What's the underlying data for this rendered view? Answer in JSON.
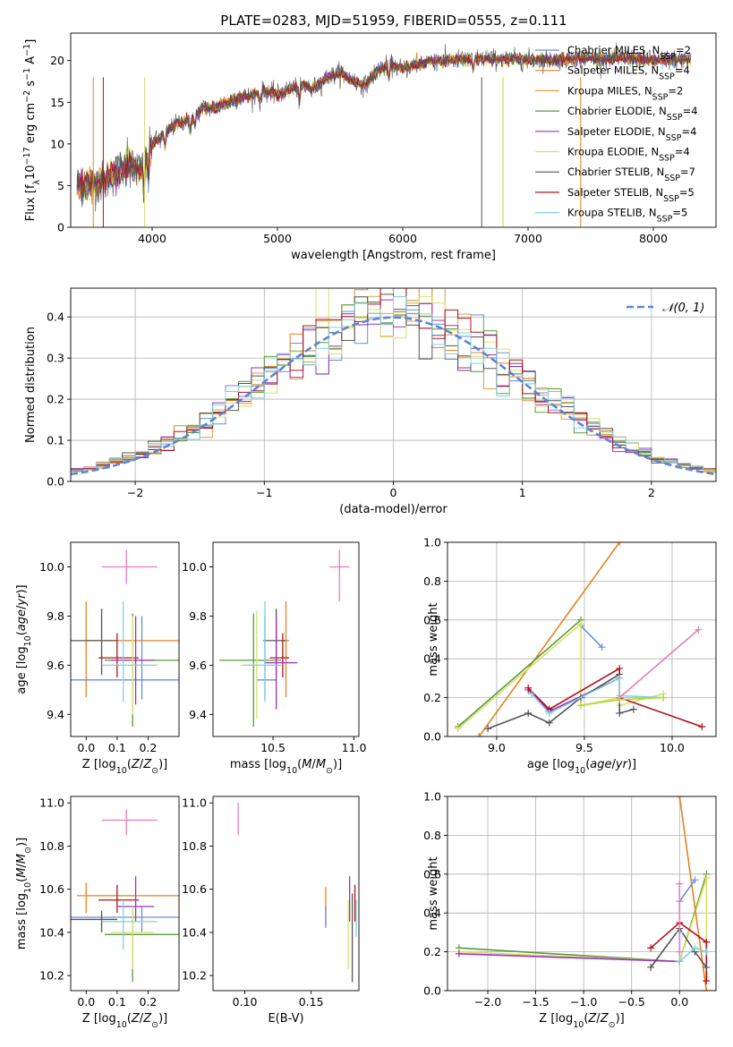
{
  "figure_title": "PLATE=0283, MJD=51959, FIBERID=0555, z=0.111",
  "colors": {
    "Chabrier MILES": "#6a8ed8",
    "Salpeter MILES": "#e6821e",
    "Kroupa MILES": "#d9a040",
    "Chabrier ELODIE": "#5a9a3a",
    "Salpeter ELODIE": "#9b30c0",
    "Kroupa ELODIE": "#d8e068",
    "Chabrier STELIB": "#555555",
    "Salpeter STELIB": "#b0101a",
    "Kroupa STELIB": "#80d0e0",
    "pink": "#e87cb8",
    "lime": "#b8d830"
  },
  "chart_data": [
    {
      "id": "spectrum",
      "type": "line",
      "xlabel": "wavelength [Angstrom, rest frame]",
      "ylabel": "Flux [f_λ10^-17 erg cm^-2 s^-1 A^-1]",
      "xlim": [
        3350,
        8500
      ],
      "ylim": [
        0,
        23.3
      ],
      "xticks": [
        4000,
        5000,
        6000,
        7000,
        8000
      ],
      "yticks": [
        0,
        5,
        10,
        15,
        20
      ],
      "legend_position": "upper right",
      "legend": [
        "Chabrier MILES, N_SSP=2",
        "Salpeter MILES, N_SSP=4",
        "Kroupa MILES, N_SSP=2",
        "Chabrier ELODIE, N_SSP=4",
        "Salpeter ELODIE, N_SSP=4",
        "Kroupa ELODIE, N_SSP=4",
        "Chabrier STELIB, N_SSP=7",
        "Salpeter STELIB, N_SSP=5",
        "Kroupa STELIB, N_SSP=5"
      ],
      "continuum": {
        "x": [
          3400,
          3500,
          3600,
          3700,
          3800,
          3900,
          4000,
          4100,
          4200,
          4300,
          4400,
          4500,
          4600,
          4700,
          4800,
          4900,
          5000,
          5100,
          5200,
          5300,
          5400,
          5500,
          5600,
          5700,
          5800,
          5900,
          6000,
          6200,
          6400,
          6600,
          6800,
          7000,
          7200,
          7400,
          7600,
          7800,
          8000,
          8300
        ],
        "y": [
          5.0,
          5.2,
          5.4,
          6.4,
          7.6,
          6.8,
          10.0,
          11.2,
          12.5,
          13.0,
          14.3,
          14.3,
          14.9,
          15.6,
          15.8,
          16.4,
          15.9,
          16.6,
          17.0,
          16.8,
          18.0,
          18.6,
          17.6,
          17.0,
          18.9,
          19.5,
          19.0,
          19.9,
          20.1,
          20.2,
          20.2,
          20.1,
          20.1,
          20.3,
          20.2,
          20.3,
          20.0,
          20.2
        ]
      }
    },
    {
      "id": "residuals",
      "type": "histogram",
      "xlabel": "(data-model)/error",
      "ylabel": "Normed distribution",
      "xlim": [
        -2.5,
        2.5
      ],
      "ylim": [
        0,
        0.47
      ],
      "xticks": [
        -2,
        -1,
        0,
        1,
        2
      ],
      "yticks": [
        0.0,
        0.1,
        0.2,
        0.3,
        0.4
      ],
      "reference": "N(0,1)",
      "legend": [
        "𝒩(0, 1)"
      ],
      "legend_position": "upper right",
      "bin_width": 0.1
    },
    {
      "id": "age_vs_Z",
      "type": "scatter",
      "xlabel": "Z [log10(Z/Z⊙)]",
      "ylabel": "age [log10(age/yr)]",
      "xlim": [
        -0.05,
        0.3
      ],
      "ylim": [
        9.31,
        10.1
      ],
      "xticks": [
        0.0,
        0.1,
        0.2
      ],
      "yticks": [
        9.4,
        9.6,
        9.8,
        10.0
      ],
      "points": [
        {
          "c": "Salpeter MILES",
          "x": 0.0,
          "y": 9.7,
          "dx": [
            0.0,
            0.3
          ],
          "dy": [
            9.47,
            9.86
          ]
        },
        {
          "c": "Chabrier MILES",
          "x": 0.18,
          "y": 9.54,
          "dx": [
            -0.05,
            0.3
          ],
          "dy": [
            9.46,
            9.8
          ]
        },
        {
          "c": "Chabrier STELIB",
          "x": 0.05,
          "y": 9.7,
          "dx": [
            -0.05,
            0.1
          ],
          "dy": [
            9.56,
            9.83
          ]
        },
        {
          "c": "Salpeter STELIB",
          "x": 0.1,
          "y": 9.63,
          "dx": [
            0.04,
            0.17
          ],
          "dy": [
            9.55,
            9.73
          ]
        },
        {
          "c": "Chabrier ELODIE",
          "x": 0.15,
          "y": 9.62,
          "dx": [
            0.06,
            0.3
          ],
          "dy": [
            9.35,
            9.81
          ]
        },
        {
          "c": "Salpeter ELODIE",
          "x": 0.16,
          "y": 9.62,
          "dx": [
            0.08,
            0.22
          ],
          "dy": [
            9.44,
            9.8
          ]
        },
        {
          "c": "Kroupa ELODIE",
          "x": 0.15,
          "y": 9.6,
          "dx": [
            0.08,
            0.2
          ],
          "dy": [
            9.4,
            9.8
          ]
        },
        {
          "c": "Kroupa STELIB",
          "x": 0.12,
          "y": 9.6,
          "dx": [
            0.05,
            0.23
          ],
          "dy": [
            9.45,
            9.86
          ]
        },
        {
          "c": "pink",
          "x": 0.13,
          "y": 10.0,
          "dx": [
            0.05,
            0.23
          ],
          "dy": [
            9.93,
            10.07
          ]
        }
      ]
    },
    {
      "id": "age_vs_mass",
      "type": "scatter",
      "xlabel": "mass [log10(M/M⊙)]",
      "xlim": [
        10.13,
        11.03
      ],
      "ylim": [
        9.31,
        10.1
      ],
      "xticks": [
        10.5,
        11.0
      ],
      "yticks": [
        9.4,
        9.6,
        9.8,
        10.0
      ],
      "points": [
        {
          "c": "Chabrier MILES",
          "x": 10.45,
          "y": 9.54,
          "dx": [
            10.4,
            10.52
          ],
          "dy": [
            9.46,
            9.8
          ]
        },
        {
          "c": "Salpeter MILES",
          "x": 10.58,
          "y": 9.7,
          "dx": [
            10.55,
            10.6
          ],
          "dy": [
            9.47,
            9.86
          ]
        },
        {
          "c": "Chabrier STELIB",
          "x": 10.52,
          "y": 9.7,
          "dx": [
            10.44,
            10.58
          ],
          "dy": [
            9.56,
            9.83
          ]
        },
        {
          "c": "Salpeter STELIB",
          "x": 10.56,
          "y": 9.63,
          "dx": [
            10.48,
            10.6
          ],
          "dy": [
            9.55,
            9.73
          ]
        },
        {
          "c": "Chabrier ELODIE",
          "x": 10.38,
          "y": 9.62,
          "dx": [
            10.17,
            10.55
          ],
          "dy": [
            9.35,
            9.81
          ]
        },
        {
          "c": "Salpeter ELODIE",
          "x": 10.52,
          "y": 9.61,
          "dx": [
            10.45,
            10.65
          ],
          "dy": [
            9.42,
            9.8
          ]
        },
        {
          "c": "Kroupa ELODIE",
          "x": 10.4,
          "y": 9.6,
          "dx": [
            10.3,
            10.52
          ],
          "dy": [
            9.38,
            9.82
          ]
        },
        {
          "c": "Kroupa STELIB",
          "x": 10.45,
          "y": 9.6,
          "dx": [
            10.32,
            10.55
          ],
          "dy": [
            9.45,
            9.86
          ]
        },
        {
          "c": "pink",
          "x": 10.91,
          "y": 10.0,
          "dx": [
            10.85,
            10.97
          ],
          "dy": [
            9.86,
            10.07
          ]
        }
      ]
    },
    {
      "id": "mass_weight_vs_age",
      "type": "line",
      "xlabel": "age [log10(age/yr)]",
      "ylabel": "mass weight",
      "xlim": [
        8.72,
        10.25
      ],
      "ylim": [
        0.0,
        1.0
      ],
      "xticks": [
        9.0,
        9.5,
        10.0
      ],
      "yticks": [
        0.0,
        0.2,
        0.4,
        0.6,
        0.8,
        1.0
      ],
      "series": [
        {
          "c": "Chabrier MILES",
          "x": [
            9.48,
            9.6
          ],
          "y": [
            0.57,
            0.46
          ]
        },
        {
          "c": "Salpeter MILES",
          "x": [
            8.9,
            9.7
          ],
          "y": [
            0.0,
            1.0
          ]
        },
        {
          "c": "Chabrier ELODIE",
          "x": [
            8.78,
            9.48
          ],
          "y": [
            0.05,
            0.6
          ]
        },
        {
          "c": "Kroupa ELODIE",
          "x": [
            8.78,
            9.48,
            9.48,
            9.7,
            9.7,
            9.95
          ],
          "y": [
            0.04,
            0.58,
            0.16,
            0.2,
            0.16,
            0.22
          ]
        },
        {
          "c": "Salpeter ELODIE",
          "x": [
            9.18,
            9.3,
            9.7
          ],
          "y": [
            0.24,
            0.13,
            0.3
          ]
        },
        {
          "c": "Chabrier STELIB",
          "x": [
            8.95,
            9.18,
            9.3,
            9.48,
            9.7,
            9.7,
            9.78
          ],
          "y": [
            0.04,
            0.12,
            0.07,
            0.2,
            0.32,
            0.12,
            0.14
          ]
        },
        {
          "c": "Salpeter STELIB",
          "x": [
            9.18,
            9.3,
            9.7,
            9.7,
            10.17
          ],
          "y": [
            0.25,
            0.14,
            0.35,
            0.2,
            0.05
          ]
        },
        {
          "c": "Kroupa STELIB",
          "x": [
            9.2,
            9.3,
            9.7,
            9.7,
            9.95
          ],
          "y": [
            0.22,
            0.12,
            0.3,
            0.21,
            0.2
          ]
        },
        {
          "c": "pink",
          "x": [
            9.7,
            10.15
          ],
          "y": [
            0.2,
            0.55
          ]
        },
        {
          "c": "lime",
          "x": [
            9.48,
            9.7,
            9.95
          ],
          "y": [
            0.16,
            0.19,
            0.2
          ]
        }
      ]
    },
    {
      "id": "mass_vs_Z",
      "type": "scatter",
      "xlabel": "Z [log10(Z/Z⊙)]",
      "ylabel": "mass [log10(M/M⊙)]",
      "xlim": [
        -0.05,
        0.3
      ],
      "ylim": [
        10.13,
        11.03
      ],
      "xticks": [
        0.0,
        0.1,
        0.2
      ],
      "yticks": [
        10.2,
        10.4,
        10.6,
        10.8,
        11.0
      ],
      "points": [
        {
          "c": "Salpeter MILES",
          "x": 0.0,
          "y": 10.57,
          "dx": [
            -0.03,
            0.3
          ],
          "dy": [
            10.49,
            10.63
          ]
        },
        {
          "c": "Chabrier MILES",
          "x": 0.18,
          "y": 10.47,
          "dx": [
            -0.05,
            0.3
          ],
          "dy": [
            10.4,
            10.52
          ]
        },
        {
          "c": "Chabrier STELIB",
          "x": 0.05,
          "y": 10.46,
          "dx": [
            -0.05,
            0.1
          ],
          "dy": [
            10.4,
            10.5
          ]
        },
        {
          "c": "Salpeter STELIB",
          "x": 0.1,
          "y": 10.55,
          "dx": [
            0.04,
            0.17
          ],
          "dy": [
            10.49,
            10.62
          ]
        },
        {
          "c": "Chabrier ELODIE",
          "x": 0.15,
          "y": 10.39,
          "dx": [
            0.06,
            0.3
          ],
          "dy": [
            10.17,
            10.5
          ]
        },
        {
          "c": "Salpeter ELODIE",
          "x": 0.16,
          "y": 10.52,
          "dx": [
            0.1,
            0.22
          ],
          "dy": [
            10.45,
            10.66
          ]
        },
        {
          "c": "Kroupa ELODIE",
          "x": 0.15,
          "y": 10.4,
          "dx": [
            0.08,
            0.22
          ],
          "dy": [
            10.23,
            10.52
          ]
        },
        {
          "c": "Kroupa STELIB",
          "x": 0.12,
          "y": 10.45,
          "dx": [
            0.05,
            0.23
          ],
          "dy": [
            10.32,
            10.55
          ]
        },
        {
          "c": "pink",
          "x": 0.13,
          "y": 10.92,
          "dx": [
            0.05,
            0.23
          ],
          "dy": [
            10.85,
            10.97
          ]
        }
      ]
    },
    {
      "id": "mass_vs_EBV",
      "type": "scatter",
      "xlabel": "E(B-V)",
      "xlim": [
        0.076,
        0.186
      ],
      "ylim": [
        10.13,
        11.03
      ],
      "xticks": [
        0.1,
        0.15
      ],
      "yticks": [
        10.2,
        10.4,
        10.6,
        10.8,
        11.0
      ],
      "points": [
        {
          "c": "Salpeter MILES",
          "x": 0.161,
          "y": 10.5,
          "dy": [
            10.43,
            10.61
          ]
        },
        {
          "c": "Chabrier MILES",
          "x": 0.161,
          "y": 10.47,
          "dy": [
            10.42,
            10.52
          ]
        },
        {
          "c": "Chabrier STELIB",
          "x": 0.181,
          "y": 10.35,
          "dy": [
            10.17,
            10.58
          ]
        },
        {
          "c": "Salpeter STELIB",
          "x": 0.183,
          "y": 10.55,
          "dy": [
            10.45,
            10.62
          ]
        },
        {
          "c": "Salpeter ELODIE",
          "x": 0.179,
          "y": 10.55,
          "dy": [
            10.45,
            10.66
          ]
        },
        {
          "c": "Kroupa ELODIE",
          "x": 0.178,
          "y": 10.35,
          "dy": [
            10.23,
            10.55
          ]
        },
        {
          "c": "Kroupa STELIB",
          "x": 0.184,
          "y": 10.45,
          "dy": [
            10.38,
            10.55
          ]
        },
        {
          "c": "pink",
          "x": 0.095,
          "y": 10.92,
          "dy": [
            10.85,
            11.0
          ]
        }
      ]
    },
    {
      "id": "mass_weight_vs_Z",
      "type": "line",
      "xlabel": "Z [log10(Z/Z⊙)]",
      "ylabel": "mass weight",
      "xlim": [
        -2.42,
        0.38
      ],
      "ylim": [
        0.0,
        1.0
      ],
      "xticks": [
        -2.0,
        -1.5,
        -1.0,
        -0.5,
        0.0
      ],
      "yticks": [
        0.0,
        0.2,
        0.4,
        0.6,
        0.8,
        1.0
      ],
      "series": [
        {
          "c": "Chabrier ELODIE",
          "x": [
            -2.3,
            0.0,
            0.28
          ],
          "y": [
            0.22,
            0.15,
            0.6
          ]
        },
        {
          "c": "Kroupa ELODIE",
          "x": [
            -2.3,
            0.0,
            0.28,
            0.28
          ],
          "y": [
            0.2,
            0.15,
            0.58,
            0.07
          ]
        },
        {
          "c": "Salpeter ELODIE",
          "x": [
            -2.3,
            0.0
          ],
          "y": [
            0.19,
            0.15
          ]
        },
        {
          "c": "Salpeter MILES",
          "x": [
            0.0,
            0.28
          ],
          "y": [
            1.0,
            0.0
          ]
        },
        {
          "c": "Chabrier MILES",
          "x": [
            0.0,
            0.16
          ],
          "y": [
            0.46,
            0.57
          ]
        },
        {
          "c": "Salpeter STELIB",
          "x": [
            -0.3,
            0.0,
            0.28,
            0.28
          ],
          "y": [
            0.22,
            0.35,
            0.25,
            0.05
          ]
        },
        {
          "c": "Chabrier STELIB",
          "x": [
            -0.3,
            0.0,
            0.16,
            0.28
          ],
          "y": [
            0.12,
            0.32,
            0.2,
            0.12
          ]
        },
        {
          "c": "Kroupa STELIB",
          "x": [
            0.0,
            0.0,
            0.16,
            0.28
          ],
          "y": [
            0.3,
            0.15,
            0.22,
            0.2
          ]
        },
        {
          "c": "pink",
          "x": [
            0.0,
            0.0
          ],
          "y": [
            0.2,
            0.55
          ]
        }
      ]
    }
  ]
}
